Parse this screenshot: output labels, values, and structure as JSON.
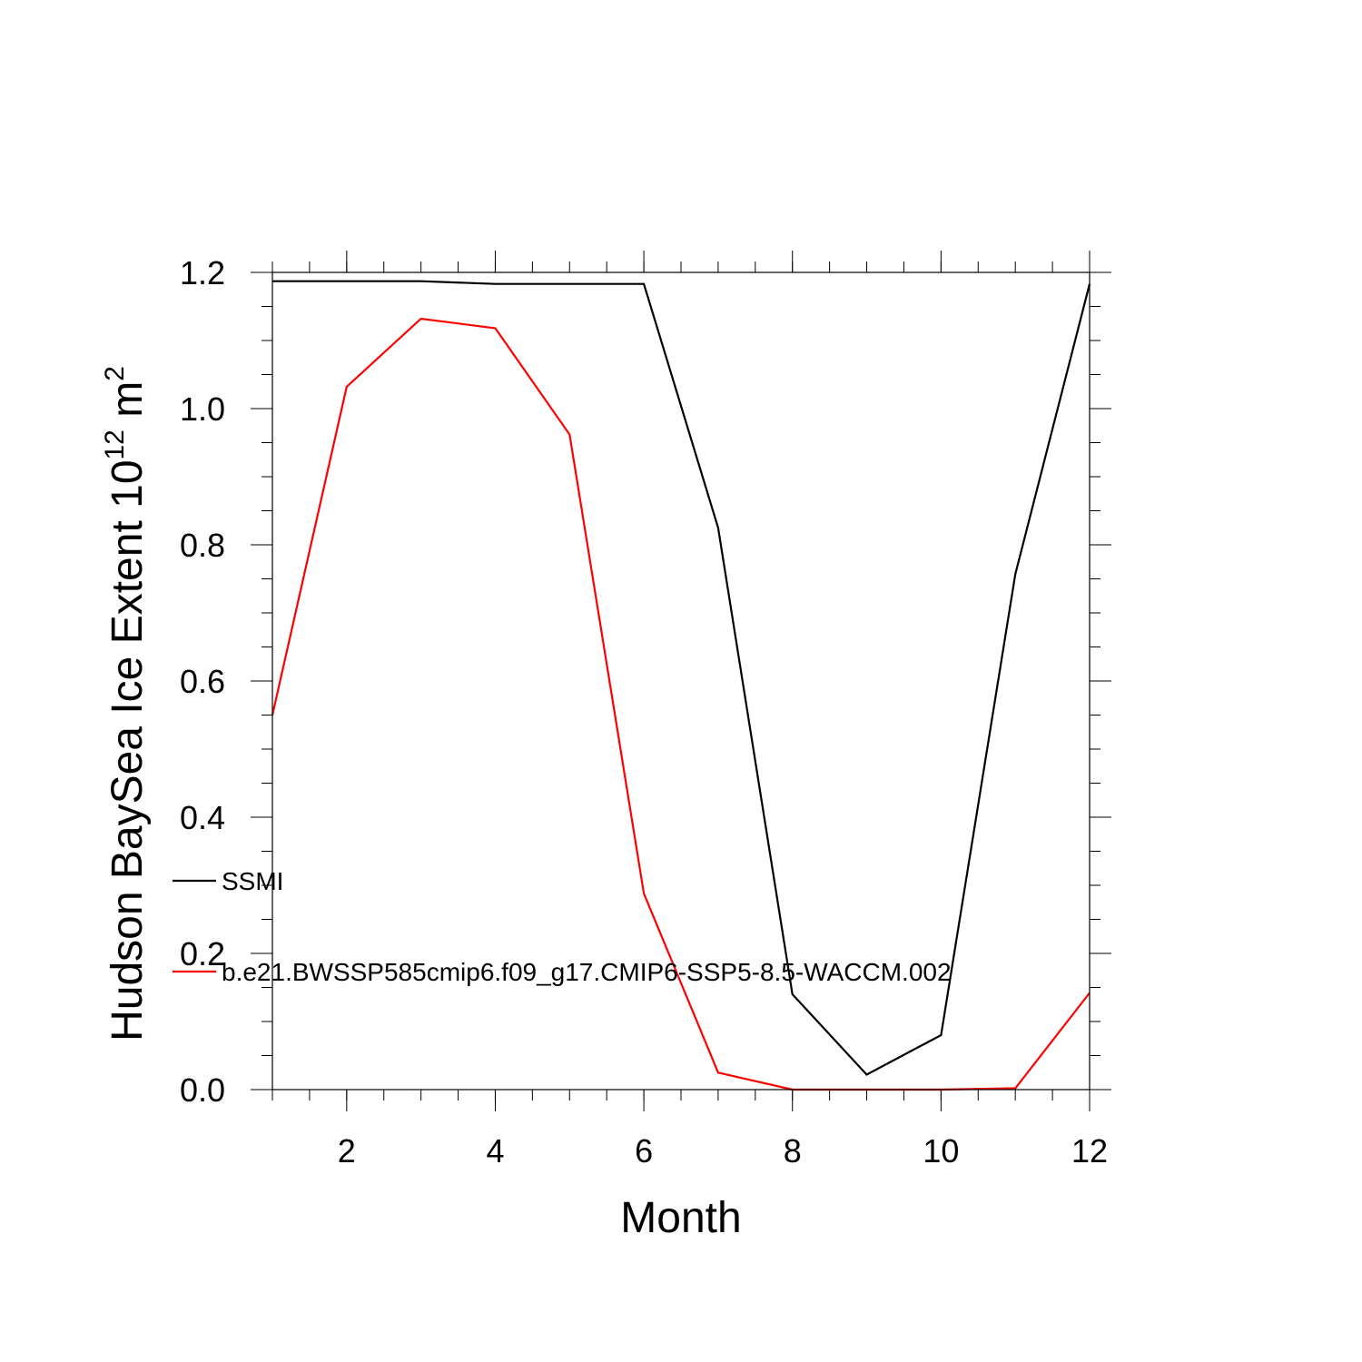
{
  "chart_data": {
    "type": "line",
    "title": "",
    "xlabel": "Month",
    "ylabel": {
      "base": "Hudson BaySea Ice Extent 10",
      "sup": "12",
      "unit": " m",
      "unit_sup": "2"
    },
    "xlim": [
      1,
      12
    ],
    "ylim": [
      0,
      1.2
    ],
    "x_ticks": [
      2,
      4,
      6,
      8,
      10,
      12
    ],
    "x_tick_labels": [
      "2",
      "4",
      "6",
      "8",
      "10",
      "12"
    ],
    "y_ticks": [
      0,
      0.2,
      0.4,
      0.6,
      0.8,
      1.0,
      1.2
    ],
    "y_tick_labels": [
      "0.0",
      "0.2",
      "0.4",
      "0.6",
      "0.8",
      "1.0",
      "1.2"
    ],
    "x_minor_step": 0.5,
    "y_minor_step": 0.05,
    "grid": false,
    "legend_position": "left-middle",
    "x": [
      1,
      2,
      3,
      4,
      5,
      6,
      7,
      8,
      9,
      10,
      11,
      12
    ],
    "series": [
      {
        "name": "SSMI",
        "color": "#000000",
        "values": [
          1.187,
          1.187,
          1.187,
          1.183,
          1.183,
          1.183,
          0.825,
          0.14,
          0.022,
          0.08,
          0.757,
          1.183
        ]
      },
      {
        "name": "b.e21.BWSSP585cmip6.f09_g17.CMIP6-SSP5-8.5-WACCM.002",
        "color": "#ff0000",
        "values": [
          0.55,
          1.032,
          1.132,
          1.118,
          0.962,
          0.288,
          0.025,
          0.0,
          0.0,
          0.0,
          0.002,
          0.142
        ]
      }
    ]
  }
}
